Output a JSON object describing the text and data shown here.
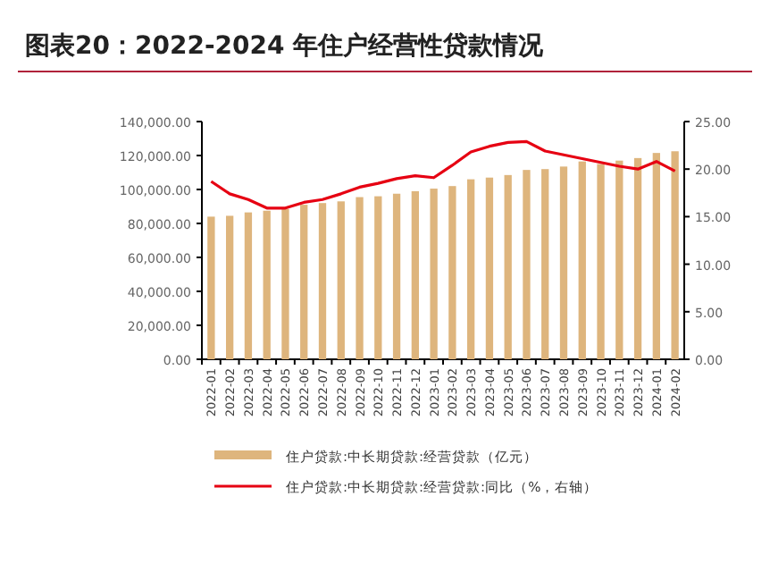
{
  "chart_data": {
    "type": "bar",
    "title": "图表20：2022-2024 年住户经营性贷款情况",
    "categories": [
      "2022-01",
      "2022-02",
      "2022-03",
      "2022-04",
      "2022-05",
      "2022-06",
      "2022-07",
      "2022-08",
      "2022-09",
      "2022-10",
      "2022-11",
      "2022-12",
      "2023-01",
      "2023-02",
      "2023-03",
      "2023-04",
      "2023-05",
      "2023-06",
      "2023-07",
      "2023-08",
      "2023-09",
      "2023-10",
      "2023-11",
      "2023-12",
      "2024-01",
      "2024-02"
    ],
    "series": [
      {
        "name": "住户贷款:中长期贷款:经营贷款（亿元）",
        "color": "#deb57d",
        "values": [
          84000,
          84500,
          86500,
          87500,
          88500,
          91000,
          92000,
          93000,
          95500,
          96000,
          97500,
          99000,
          100500,
          102000,
          106000,
          107000,
          108500,
          111500,
          112000,
          113500,
          116500,
          115000,
          117000,
          118500,
          121500,
          122500
        ]
      },
      {
        "name": "住户贷款:中长期贷款:经营贷款:同比（%，右轴）",
        "type": "line",
        "axis": "y2",
        "color": "#e60012",
        "values": [
          18.7,
          17.4,
          16.8,
          15.9,
          15.9,
          16.5,
          16.8,
          17.4,
          18.1,
          18.5,
          19.0,
          19.3,
          19.1,
          20.4,
          21.8,
          22.4,
          22.8,
          22.9,
          21.9,
          21.5,
          21.1,
          20.7,
          20.3,
          20.0,
          20.8,
          19.8
        ]
      }
    ],
    "ylim": [
      0,
      140000
    ],
    "yticks": [
      {
        "value": 0,
        "label": "0.00"
      },
      {
        "value": 20000,
        "label": "20,000.00"
      },
      {
        "value": 40000,
        "label": "40,000.00"
      },
      {
        "value": 60000,
        "label": "60,000.00"
      },
      {
        "value": 80000,
        "label": "80,000.00"
      },
      {
        "value": 100000,
        "label": "100,000.00"
      },
      {
        "value": 120000,
        "label": "120,000.00"
      },
      {
        "value": 140000,
        "label": "140,000.00"
      }
    ],
    "y2lim": [
      0,
      25
    ],
    "y2ticks": [
      {
        "value": 0,
        "label": "0.00"
      },
      {
        "value": 5,
        "label": "5.00"
      },
      {
        "value": 10,
        "label": "10.00"
      },
      {
        "value": 15,
        "label": "15.00"
      },
      {
        "value": 20,
        "label": "20.00"
      },
      {
        "value": 25,
        "label": "25.00"
      }
    ],
    "legend": "bottom",
    "marker": "none",
    "line_style": "solid"
  }
}
